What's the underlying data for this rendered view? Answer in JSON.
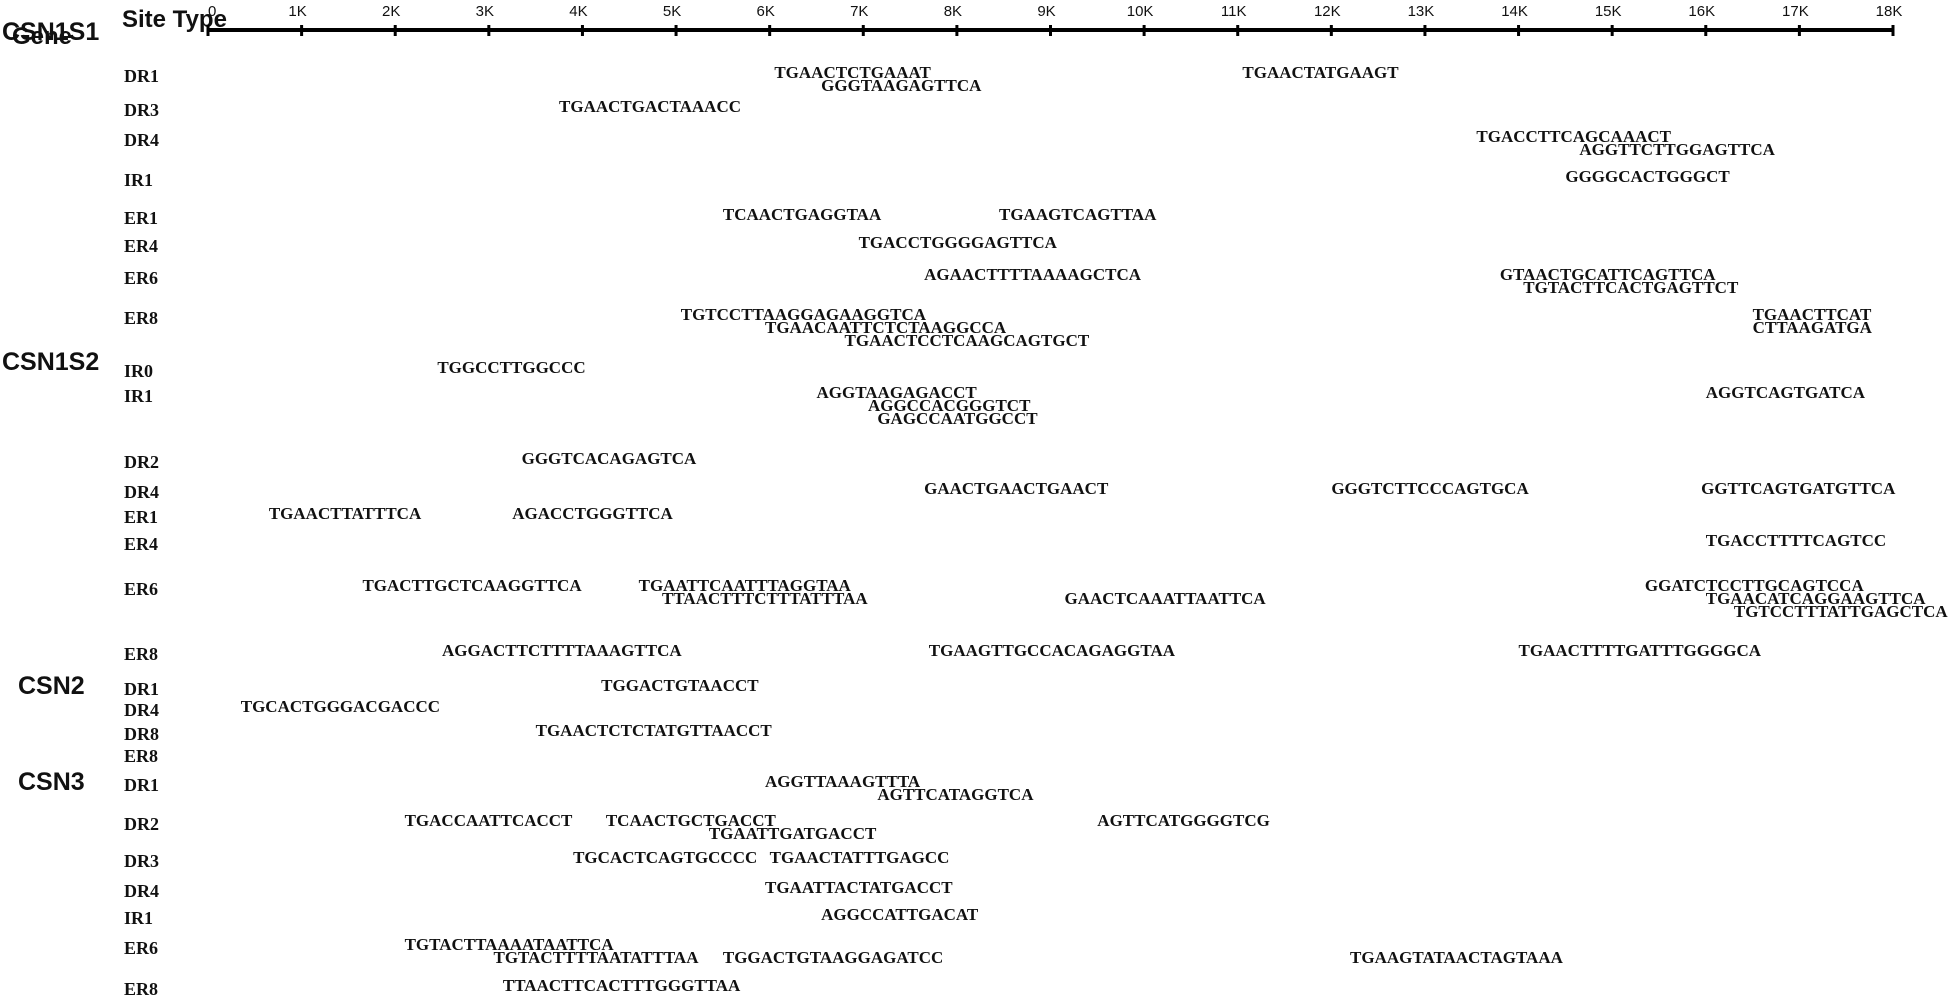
{
  "header": {
    "gene": "Gene",
    "site_type": "Site Type"
  },
  "axis": {
    "min": 0,
    "max": 18000,
    "ticks": [
      {
        "value": 0,
        "label": "0"
      },
      {
        "value": 1000,
        "label": "1K"
      },
      {
        "value": 2000,
        "label": "2K"
      },
      {
        "value": 3000,
        "label": "3K"
      },
      {
        "value": 4000,
        "label": "4K"
      },
      {
        "value": 5000,
        "label": "5K"
      },
      {
        "value": 6000,
        "label": "6K"
      },
      {
        "value": 7000,
        "label": "7K"
      },
      {
        "value": 8000,
        "label": "8K"
      },
      {
        "value": 9000,
        "label": "9K"
      },
      {
        "value": 10000,
        "label": "10K"
      },
      {
        "value": 11000,
        "label": "11K"
      },
      {
        "value": 12000,
        "label": "12K"
      },
      {
        "value": 13000,
        "label": "13K"
      },
      {
        "value": 14000,
        "label": "14K"
      },
      {
        "value": 15000,
        "label": "15K"
      },
      {
        "value": 16000,
        "label": "16K"
      },
      {
        "value": 17000,
        "label": "17K"
      },
      {
        "value": 18000,
        "label": "18K"
      }
    ]
  },
  "genes": [
    {
      "name": "CSN1S1",
      "rows": [
        {
          "type": "DR1",
          "seqs": [
            {
              "text": "TGAACTCTGAAAT",
              "pos": 6050,
              "line": 0
            },
            {
              "text": "GGGTAAGAGTTCA",
              "pos": 6550,
              "line": 1
            },
            {
              "text": "TGAACTATGAAGT",
              "pos": 11050,
              "line": 0
            }
          ]
        },
        {
          "type": "DR3",
          "seqs": [
            {
              "text": "TGAACTGACTAAACC",
              "pos": 3750,
              "line": 0
            }
          ]
        },
        {
          "type": "DR4",
          "seqs": [
            {
              "text": "TGACCTTCAGCAAACT",
              "pos": 13550,
              "line": 0
            },
            {
              "text": "AGGTTCTTGGAGTTCA",
              "pos": 14650,
              "line": 1
            }
          ]
        },
        {
          "type": "IR1",
          "seqs": [
            {
              "text": "GGGGCACTGGGCT",
              "pos": 14500,
              "line": 0
            }
          ]
        },
        {
          "type": "ER1",
          "seqs": [
            {
              "text": "TCAACTGAGGTAA",
              "pos": 5500,
              "line": 0
            },
            {
              "text": "TGAAGTCAGTTAA",
              "pos": 8450,
              "line": 0
            }
          ]
        },
        {
          "type": "ER4",
          "seqs": [
            {
              "text": "TGACCTGGGGAGTTCA",
              "pos": 6950,
              "line": 0
            }
          ]
        },
        {
          "type": "ER6",
          "seqs": [
            {
              "text": "AGAACTTTTAAAAGCTCA",
              "pos": 7650,
              "line": 0
            },
            {
              "text": "GTAACTGCATTCAGTTCA",
              "pos": 13800,
              "line": 0
            },
            {
              "text": "TGTACTTCACTGAGTTCT",
              "pos": 14050,
              "line": 1
            }
          ]
        },
        {
          "type": "ER8",
          "seqs": [
            {
              "text": "TGTCCTTAAGGAGAAGGTCA",
              "pos": 5050,
              "line": 0
            },
            {
              "text": "TGAACAATTCTCTAAGGCCA",
              "pos": 5950,
              "line": 1
            },
            {
              "text": "TGAACTCCTCAAGCAGTGCT",
              "pos": 6800,
              "line": 2
            },
            {
              "text": "TGAACTTCAT",
              "pos": 16500,
              "line": 0
            },
            {
              "text": "CTTAAGATGA",
              "pos": 16500,
              "line": 1
            }
          ]
        }
      ]
    },
    {
      "name": "CSN1S2",
      "rows": [
        {
          "type": "IR0",
          "seqs": [
            {
              "text": "TGGCCTTGGCCC",
              "pos": 2450,
              "line": 0
            }
          ]
        },
        {
          "type": "IR1",
          "seqs": [
            {
              "text": "AGGTAAGAGACCT",
              "pos": 6500,
              "line": 0
            },
            {
              "text": "AGGCCACGGGTCT",
              "pos": 7050,
              "line": 1
            },
            {
              "text": "GAGCCAATGGCCT",
              "pos": 7150,
              "line": 2
            },
            {
              "text": "AGGTCAGTGATCA",
              "pos": 16000,
              "line": 0
            }
          ]
        },
        {
          "type": "DR2",
          "seqs": [
            {
              "text": "GGGTCACAGAGTCA",
              "pos": 3350,
              "line": 0
            }
          ]
        },
        {
          "type": "DR4",
          "seqs": [
            {
              "text": "GAACTGAACTGAACT",
              "pos": 7650,
              "line": 0
            },
            {
              "text": "GGGTCTTCCCAGTGCA",
              "pos": 12000,
              "line": 0
            },
            {
              "text": "GGTTCAGTGATGTTCA",
              "pos": 15950,
              "line": 0
            }
          ]
        },
        {
          "type": "ER1",
          "seqs": [
            {
              "text": "TGAACTTATTTCA",
              "pos": 650,
              "line": 0
            },
            {
              "text": "AGACCTGGGTTCA",
              "pos": 3250,
              "line": 0
            }
          ]
        },
        {
          "type": "ER4",
          "seqs": [
            {
              "text": "TGACCTTTTCAGTCC",
              "pos": 16000,
              "line": 0
            }
          ]
        },
        {
          "type": "ER6",
          "seqs": [
            {
              "text": "TGACTTGCTCAAGGTTCA",
              "pos": 1650,
              "line": 0
            },
            {
              "text": "TGAATTCAATTTAGGTAA",
              "pos": 4600,
              "line": 0
            },
            {
              "text": "TTAACTTTCTTTATTTAA",
              "pos": 4850,
              "line": 1
            },
            {
              "text": "GAACTCAAATTAATTCA",
              "pos": 9150,
              "line": 1
            },
            {
              "text": "GGATCTCCTTGCAGTCCA",
              "pos": 15350,
              "line": 0
            },
            {
              "text": "TGAACATCAGGAAGTTCA",
              "pos": 16000,
              "line": 1
            },
            {
              "text": "TGTCCTTTATTGAGCTCA",
              "pos": 16300,
              "line": 2
            }
          ]
        },
        {
          "type": "ER8",
          "seqs": [
            {
              "text": "AGGACTTCTTTTAAAGTTCA",
              "pos": 2500,
              "line": 0
            },
            {
              "text": "TGAAGTTGCCACAGAGGTAA",
              "pos": 7700,
              "line": 0
            },
            {
              "text": "TGAACTTTTGATTTGGGGCA",
              "pos": 14000,
              "line": 0
            }
          ]
        }
      ]
    },
    {
      "name": "CSN2",
      "rows": [
        {
          "type": "DR1",
          "seqs": [
            {
              "text": "TGGACTGTAACCT",
              "pos": 4200,
              "line": 0
            }
          ]
        },
        {
          "type": "DR4",
          "seqs": [
            {
              "text": "TGCACTGGGACGACCC",
              "pos": 350,
              "line": 0
            }
          ]
        },
        {
          "type": "DR8",
          "seqs": [
            {
              "text": "TGAACTCTCTATGTTAACCT",
              "pos": 3500,
              "line": 0
            }
          ]
        },
        {
          "type": "ER8",
          "seqs": []
        }
      ]
    },
    {
      "name": "CSN3",
      "rows": [
        {
          "type": "DR1",
          "seqs": [
            {
              "text": "AGGTTAAAGTTTA",
              "pos": 5950,
              "line": 0
            },
            {
              "text": "AGTTCATAGGTCA",
              "pos": 7150,
              "line": 1
            }
          ]
        },
        {
          "type": "DR2",
          "seqs": [
            {
              "text": "TGACCAATTCACCT",
              "pos": 2100,
              "line": 0
            },
            {
              "text": "TCAACTGCTGACCT",
              "pos": 4250,
              "line": 0
            },
            {
              "text": "TGAATTGATGACCT",
              "pos": 5350,
              "line": 1
            },
            {
              "text": "AGTTCATGGGGTCG",
              "pos": 9500,
              "line": 0
            }
          ]
        },
        {
          "type": "DR3",
          "seqs": [
            {
              "text": "TGCACTCAGTGCCCC",
              "pos": 3900,
              "line": 0
            },
            {
              "text": "TGAACTATTTGAGCC",
              "pos": 6000,
              "line": 0
            }
          ]
        },
        {
          "type": "DR4",
          "seqs": [
            {
              "text": "TGAATTACTATGACCT",
              "pos": 5950,
              "line": 0
            }
          ]
        },
        {
          "type": "IR1",
          "seqs": [
            {
              "text": "AGGCCATTGACAT",
              "pos": 6550,
              "line": 0
            }
          ]
        },
        {
          "type": "ER6",
          "seqs": [
            {
              "text": "TGTACTTAAAATAATTCA",
              "pos": 2100,
              "line": 0
            },
            {
              "text": "TGTACTTTTAATATTTAA",
              "pos": 3050,
              "line": 1
            },
            {
              "text": "TGGACTGTAAGGAGATCC",
              "pos": 5500,
              "line": 1
            },
            {
              "text": "TGAAGTATAACTAGTAAA",
              "pos": 12200,
              "line": 1
            }
          ]
        },
        {
          "type": "ER8",
          "seqs": [
            {
              "text": "TTAACTTCACTTTGGGTTAA",
              "pos": 3150,
              "line": 0
            }
          ]
        }
      ]
    }
  ]
}
